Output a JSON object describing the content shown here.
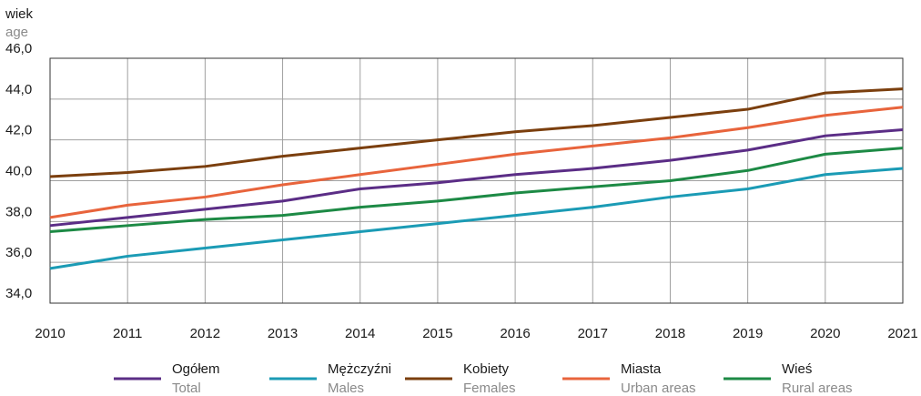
{
  "chart_data": {
    "type": "line",
    "y_label": "wiek",
    "y_label_en": "age",
    "x": [
      2010,
      2011,
      2012,
      2013,
      2014,
      2015,
      2016,
      2017,
      2018,
      2019,
      2020,
      2021
    ],
    "xlim": [
      2010,
      2021
    ],
    "xticks": [
      2010,
      2011,
      2012,
      2013,
      2014,
      2015,
      2016,
      2017,
      2018,
      2019,
      2020,
      2021
    ],
    "ylim": [
      34,
      46
    ],
    "yticks": [
      {
        "value": 34,
        "label": "34,0"
      },
      {
        "value": 36,
        "label": "36,0"
      },
      {
        "value": 38,
        "label": "38,0"
      },
      {
        "value": 40,
        "label": "40,0"
      },
      {
        "value": 42,
        "label": "42,0"
      },
      {
        "value": 44,
        "label": "44,0"
      },
      {
        "value": 46,
        "label": "46,0"
      }
    ],
    "grid": true,
    "legend": "bottom",
    "series": [
      {
        "name": "Ogółem",
        "name_en": "Total",
        "color": "#5b2d86",
        "values": [
          37.8,
          38.2,
          38.6,
          39.0,
          39.6,
          39.9,
          40.3,
          40.6,
          41.0,
          41.5,
          42.2,
          42.5
        ]
      },
      {
        "name": "Mężczyźni",
        "name_en": "Males",
        "color": "#1b9bb5",
        "values": [
          35.7,
          36.3,
          36.7,
          37.1,
          37.5,
          37.9,
          38.3,
          38.7,
          39.2,
          39.6,
          40.3,
          40.6
        ]
      },
      {
        "name": "Kobiety",
        "name_en": "Females",
        "color": "#7b3f0e",
        "values": [
          40.2,
          40.4,
          40.7,
          41.2,
          41.6,
          42.0,
          42.4,
          42.7,
          43.1,
          43.5,
          44.3,
          44.5
        ]
      },
      {
        "name": "Miasta",
        "name_en": "Urban areas",
        "color": "#e8643c",
        "values": [
          38.2,
          38.8,
          39.2,
          39.8,
          40.3,
          40.8,
          41.3,
          41.7,
          42.1,
          42.6,
          43.2,
          43.6
        ]
      },
      {
        "name": "Wieś",
        "name_en": "Rural areas",
        "color": "#1d8a45",
        "values": [
          37.5,
          37.8,
          38.1,
          38.3,
          38.7,
          39.0,
          39.4,
          39.7,
          40.0,
          40.5,
          41.3,
          41.6
        ]
      }
    ]
  }
}
